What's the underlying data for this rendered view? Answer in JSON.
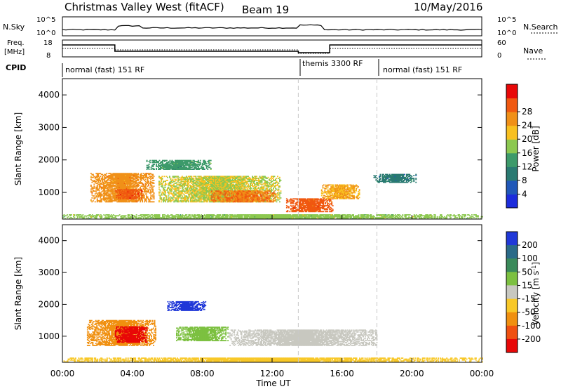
{
  "header": {
    "title": "Christmas Valley West (fitACF)",
    "beam": "Beam 19",
    "date": "10/May/2016"
  },
  "top_panels": {
    "nsky_label": "N.Sky",
    "nsky_ticks": [
      "10^5",
      "10^0"
    ],
    "nsearch_label": "N.Search",
    "nsearch_ticks": [
      "10^5",
      "10^0"
    ],
    "freq_label": "Freq.",
    "freq_unit": "[MHz]",
    "freq_ticks": [
      "18",
      "8"
    ],
    "nave_label": "Nave",
    "nave_ticks": [
      "60",
      "0"
    ],
    "cpid_label": "CPID",
    "cpid_segments": [
      {
        "label": "normal (fast) 151 RF",
        "start_h": 0.0,
        "end_h": 13.5
      },
      {
        "label": "themis 3300 RF",
        "start_h": 13.5,
        "end_h": 18.0
      },
      {
        "label": "normal (fast) 151 RF",
        "start_h": 18.0,
        "end_h": 24.0
      }
    ]
  },
  "chart_data": [
    {
      "type": "heatmap",
      "name": "power",
      "ylabel": "Slant Range [km]",
      "xlabel": "Time UT",
      "xlim": [
        0,
        24
      ],
      "ylim": [
        180,
        4500
      ],
      "y_ticks": [
        "1000",
        "2000",
        "3000",
        "4000"
      ],
      "colorbar_label": "Power [dB]",
      "colorbar_ticks": [
        "4",
        "8",
        "12",
        "16",
        "20",
        "24",
        "28"
      ],
      "colorbar_colors": [
        "#1c2cdc",
        "#2058b8",
        "#2a7a72",
        "#3d9a6a",
        "#8cc850",
        "#f8c020",
        "#f09018",
        "#f05810",
        "#e80808"
      ],
      "features": [
        {
          "t0": 1.6,
          "t1": 5.2,
          "r0": 700,
          "r1": 1600,
          "value": 24
        },
        {
          "t0": 3.0,
          "t1": 4.6,
          "r0": 800,
          "r1": 1100,
          "value": 28
        },
        {
          "t0": 5.5,
          "t1": 12.5,
          "r0": 700,
          "r1": 1500,
          "value": 18
        },
        {
          "t0": 8.5,
          "t1": 12.2,
          "r0": 700,
          "r1": 1050,
          "value": 26
        },
        {
          "t0": 12.8,
          "t1": 15.5,
          "r0": 400,
          "r1": 800,
          "value": 28
        },
        {
          "t0": 14.8,
          "t1": 17.0,
          "r0": 800,
          "r1": 1250,
          "value": 22
        },
        {
          "t0": 17.8,
          "t1": 20.2,
          "r0": 1300,
          "r1": 1550,
          "value": 8
        },
        {
          "t0": 4.8,
          "t1": 8.5,
          "r0": 1700,
          "r1": 2000,
          "value": 12
        },
        {
          "t0": 0.0,
          "t1": 24.0,
          "r0": 180,
          "r1": 320,
          "value": 16
        }
      ]
    },
    {
      "type": "heatmap",
      "name": "velocity",
      "ylabel": "Slant Range [km]",
      "xlabel": "Time UT",
      "xlim": [
        0,
        24
      ],
      "ylim": [
        180,
        4500
      ],
      "y_ticks": [
        "1000",
        "2000",
        "3000",
        "4000"
      ],
      "x_ticks": [
        "00:00",
        "04:00",
        "08:00",
        "12:00",
        "16:00",
        "20:00",
        "00:00"
      ],
      "colorbar_label": "Velocity [m s",
      "colorbar_unit_exp": "-1",
      "colorbar_unit_close": "]",
      "colorbar_ticks": [
        "200",
        "100",
        "50",
        "15",
        "-15",
        "-50",
        "-100",
        "-200"
      ],
      "colorbar_colors": [
        "#2038d8",
        "#2a6a88",
        "#3a8a5a",
        "#7cc040",
        "#c8c8c0",
        "#f8c828",
        "#f09010",
        "#f05010",
        "#e80808"
      ],
      "features": [
        {
          "t0": 1.4,
          "t1": 5.3,
          "r0": 700,
          "r1": 1500,
          "value": -100
        },
        {
          "t0": 3.0,
          "t1": 4.8,
          "r0": 800,
          "r1": 1300,
          "value": -200
        },
        {
          "t0": 6.0,
          "t1": 8.2,
          "r0": 1800,
          "r1": 2100,
          "value": 200
        },
        {
          "t0": 6.5,
          "t1": 9.5,
          "r0": 850,
          "r1": 1300,
          "value": 50
        },
        {
          "t0": 9.5,
          "t1": 18.0,
          "r0": 700,
          "r1": 1200,
          "value": 0
        },
        {
          "t0": 0.0,
          "t1": 24.0,
          "r0": 180,
          "r1": 330,
          "value": -50
        }
      ]
    }
  ]
}
